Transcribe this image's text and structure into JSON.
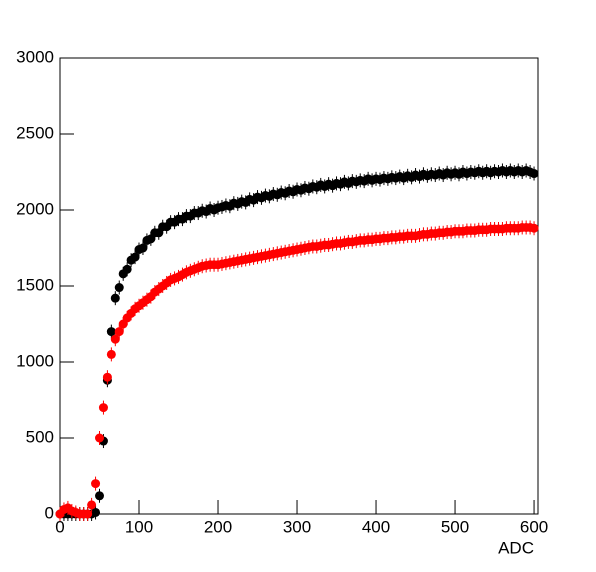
{
  "chart_data": {
    "type": "scatter",
    "x_label": "ADC",
    "x": [
      0,
      5,
      10,
      15,
      20,
      25,
      30,
      35,
      40,
      45,
      50,
      55,
      60,
      65,
      70,
      75,
      80,
      85,
      90,
      95,
      100,
      105,
      110,
      115,
      120,
      125,
      130,
      135,
      140,
      145,
      150,
      155,
      160,
      165,
      170,
      175,
      180,
      185,
      190,
      195,
      200,
      205,
      210,
      215,
      220,
      225,
      230,
      235,
      240,
      245,
      250,
      255,
      260,
      265,
      270,
      275,
      280,
      285,
      290,
      295,
      300,
      305,
      310,
      315,
      320,
      325,
      330,
      335,
      340,
      345,
      350,
      355,
      360,
      365,
      370,
      375,
      380,
      385,
      390,
      395,
      400,
      405,
      410,
      415,
      420,
      425,
      430,
      435,
      440,
      445,
      450,
      455,
      460,
      465,
      470,
      475,
      480,
      485,
      490,
      495,
      500,
      505,
      510,
      515,
      520,
      525,
      530,
      535,
      540,
      545,
      550,
      555,
      560,
      565,
      570,
      575,
      580,
      585,
      590,
      595,
      600
    ],
    "series": [
      {
        "color": "#000000",
        "values": [
          0,
          0,
          0,
          0,
          0,
          0,
          0,
          0,
          0,
          10,
          120,
          480,
          880,
          1200,
          1420,
          1490,
          1580,
          1610,
          1670,
          1690,
          1740,
          1750,
          1800,
          1810,
          1850,
          1850,
          1890,
          1890,
          1920,
          1920,
          1940,
          1940,
          1960,
          1960,
          1980,
          1980,
          1995,
          1990,
          2010,
          2000,
          2015,
          2020,
          2030,
          2025,
          2045,
          2040,
          2055,
          2050,
          2070,
          2065,
          2085,
          2080,
          2095,
          2090,
          2105,
          2100,
          2115,
          2110,
          2125,
          2120,
          2135,
          2130,
          2145,
          2140,
          2155,
          2150,
          2165,
          2155,
          2170,
          2160,
          2175,
          2170,
          2185,
          2175,
          2190,
          2185,
          2195,
          2190,
          2205,
          2195,
          2205,
          2200,
          2210,
          2205,
          2215,
          2210,
          2220,
          2210,
          2225,
          2215,
          2230,
          2220,
          2235,
          2225,
          2235,
          2230,
          2240,
          2230,
          2245,
          2235,
          2245,
          2235,
          2250,
          2240,
          2250,
          2245,
          2255,
          2245,
          2255,
          2245,
          2255,
          2250,
          2260,
          2250,
          2260,
          2250,
          2260,
          2250,
          2260,
          2250,
          2240
        ]
      },
      {
        "color": "#ff0000",
        "values": [
          0,
          30,
          40,
          20,
          10,
          0,
          0,
          0,
          60,
          200,
          500,
          700,
          900,
          1050,
          1150,
          1200,
          1250,
          1290,
          1320,
          1350,
          1370,
          1390,
          1410,
          1430,
          1460,
          1480,
          1500,
          1520,
          1540,
          1550,
          1560,
          1575,
          1590,
          1600,
          1610,
          1620,
          1630,
          1635,
          1640,
          1640,
          1640,
          1645,
          1650,
          1655,
          1660,
          1665,
          1670,
          1675,
          1680,
          1685,
          1690,
          1695,
          1700,
          1705,
          1710,
          1715,
          1720,
          1725,
          1730,
          1735,
          1740,
          1745,
          1750,
          1755,
          1760,
          1760,
          1765,
          1770,
          1770,
          1775,
          1780,
          1780,
          1785,
          1790,
          1790,
          1795,
          1800,
          1800,
          1805,
          1805,
          1810,
          1810,
          1815,
          1815,
          1820,
          1820,
          1825,
          1825,
          1830,
          1830,
          1830,
          1835,
          1840,
          1840,
          1845,
          1845,
          1850,
          1850,
          1855,
          1855,
          1860,
          1860,
          1860,
          1865,
          1865,
          1865,
          1870,
          1870,
          1870,
          1875,
          1875,
          1875,
          1875,
          1880,
          1880,
          1880,
          1880,
          1885,
          1885,
          1885,
          1880
        ]
      }
    ],
    "xlim": [
      0,
      605
    ],
    "ylim": [
      0,
      3000
    ],
    "xticks": [
      0,
      100,
      200,
      300,
      400,
      500,
      600
    ],
    "yticks": [
      0,
      500,
      1000,
      1500,
      2000,
      2500,
      3000
    ]
  }
}
